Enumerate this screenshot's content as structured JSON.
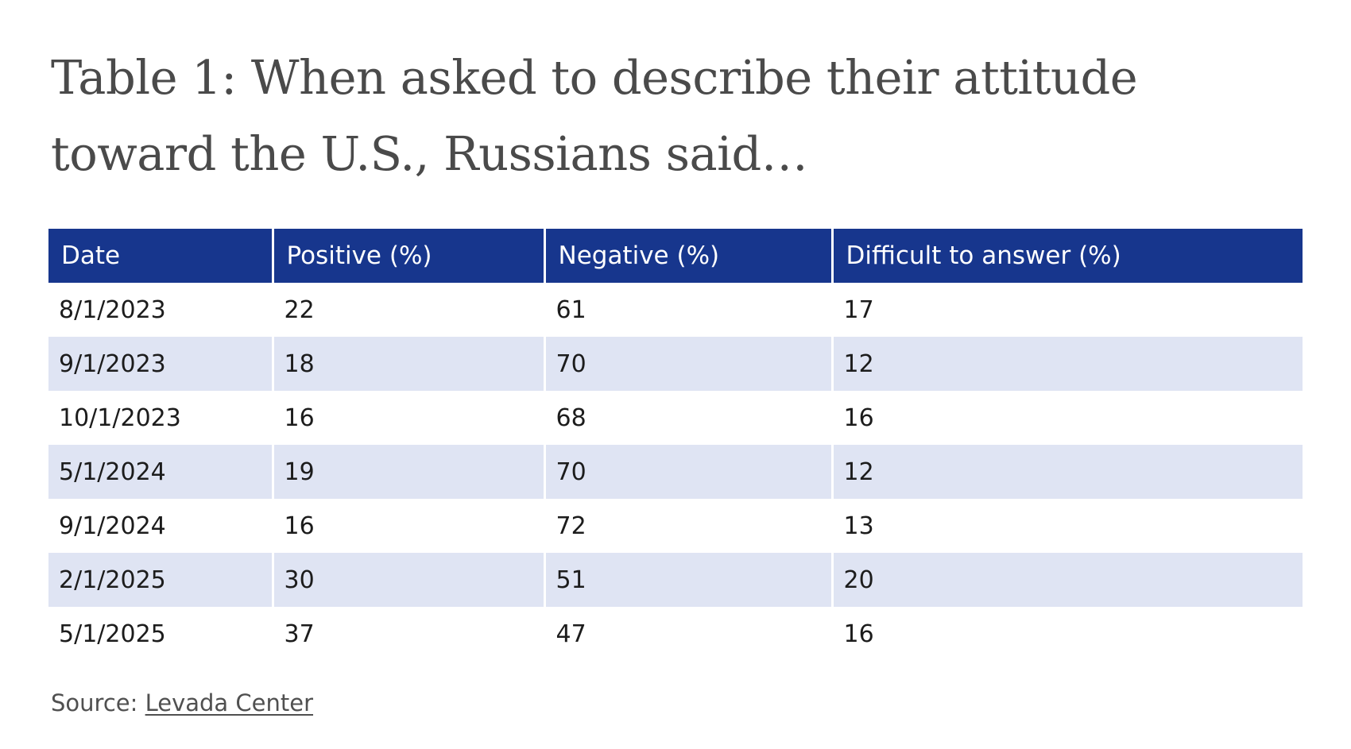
{
  "chart_data": {
    "type": "table",
    "title": "Table 1: When asked to describe their attitude toward the U.S., Russians said…",
    "columns": [
      "Date",
      "Positive (%)",
      "Negative (%)",
      "Difficult to answer (%)"
    ],
    "rows": [
      [
        "8/1/2023",
        "22",
        "61",
        "17"
      ],
      [
        "9/1/2023",
        "18",
        "70",
        "12"
      ],
      [
        "10/1/2023",
        "16",
        "68",
        "16"
      ],
      [
        "5/1/2024",
        "19",
        "70",
        "12"
      ],
      [
        "9/1/2024",
        "16",
        "72",
        "13"
      ],
      [
        "2/1/2025",
        "30",
        "51",
        "20"
      ],
      [
        "5/1/2025",
        "37",
        "47",
        "16"
      ]
    ],
    "source_label": "Source: ",
    "source_link": "Levada Center"
  },
  "colors": {
    "header_bg": "#17368d",
    "header_text": "#ffffff",
    "stripe": "#dfe4f3",
    "title_text": "#4a4a4a"
  }
}
